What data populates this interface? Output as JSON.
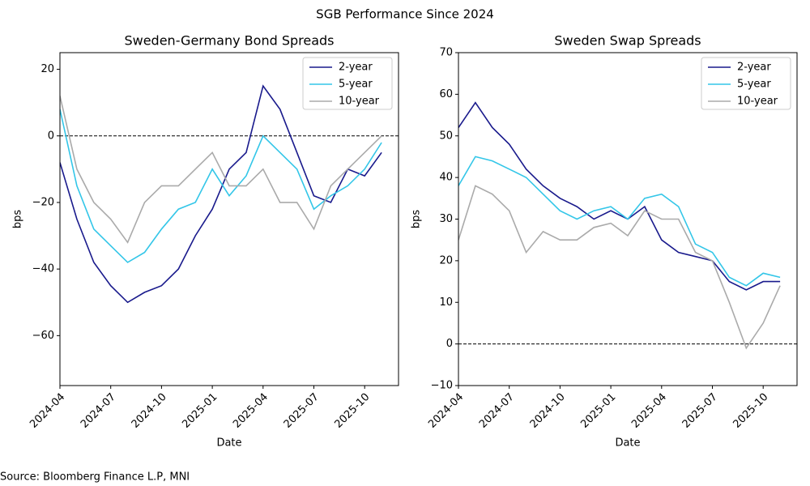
{
  "title": "SGB Performance Since 2024",
  "source": "Source: Bloomberg Finance L.P, MNI",
  "chart_data": [
    {
      "type": "line",
      "title": "Sweden-Germany Bond Spreads",
      "xlabel": "Date",
      "ylabel": "bps",
      "x": [
        "2024-04",
        "2024-05",
        "2024-06",
        "2024-07",
        "2024-08",
        "2024-09",
        "2024-10",
        "2024-11",
        "2024-12",
        "2025-01",
        "2025-02",
        "2025-03",
        "2025-04",
        "2025-05",
        "2025-06",
        "2025-07",
        "2025-08",
        "2025-09",
        "2025-10",
        "2025-11"
      ],
      "xlim": [
        "2024-04",
        "2025-12"
      ],
      "xticks": [
        "2024-04",
        "2024-07",
        "2024-10",
        "2025-01",
        "2025-04",
        "2025-07",
        "2025-10"
      ],
      "ylim": [
        -75,
        25
      ],
      "yticks": [
        {
          "value": -60,
          "label": "−60"
        },
        {
          "value": -40,
          "label": "−40"
        },
        {
          "value": -20,
          "label": "−20"
        },
        0,
        20
      ],
      "zero_line": true,
      "legend": "upper right",
      "series": [
        {
          "name": "2-year",
          "color": "#191a8c",
          "values": [
            -8,
            -25,
            -38,
            -45,
            -50,
            -47,
            -45,
            -40,
            -30,
            -22,
            -10,
            -5,
            15,
            8,
            -5,
            -18,
            -20,
            -10,
            -12,
            -5
          ]
        },
        {
          "name": "5-year",
          "color": "#33c6e8",
          "values": [
            8,
            -15,
            -28,
            -33,
            -38,
            -35,
            -28,
            -22,
            -20,
            -10,
            -18,
            -12,
            0,
            -5,
            -10,
            -22,
            -18,
            -15,
            -10,
            -2
          ]
        },
        {
          "name": "10-year",
          "color": "#aaaaaa",
          "values": [
            12,
            -10,
            -20,
            -25,
            -32,
            -20,
            -15,
            -15,
            -10,
            -5,
            -15,
            -15,
            -10,
            -20,
            -20,
            -28,
            -15,
            -10,
            -5,
            0
          ]
        }
      ]
    },
    {
      "type": "line",
      "title": "Sweden Swap Spreads",
      "xlabel": "Date",
      "ylabel": "bps",
      "x": [
        "2024-04",
        "2024-05",
        "2024-06",
        "2024-07",
        "2024-08",
        "2024-09",
        "2024-10",
        "2024-11",
        "2024-12",
        "2025-01",
        "2025-02",
        "2025-03",
        "2025-04",
        "2025-05",
        "2025-06",
        "2025-07",
        "2025-08",
        "2025-09",
        "2025-10",
        "2025-11"
      ],
      "xlim": [
        "2024-04",
        "2025-12"
      ],
      "xticks": [
        "2024-04",
        "2024-07",
        "2024-10",
        "2025-01",
        "2025-04",
        "2025-07",
        "2025-10"
      ],
      "ylim": [
        -10,
        70
      ],
      "yticks": [
        {
          "value": -10,
          "label": "−10"
        },
        0,
        10,
        20,
        30,
        40,
        50,
        60,
        70
      ],
      "zero_line": true,
      "legend": "upper right",
      "series": [
        {
          "name": "2-year",
          "color": "#191a8c",
          "values": [
            52,
            58,
            52,
            48,
            42,
            38,
            35,
            33,
            30,
            32,
            30,
            33,
            25,
            22,
            21,
            20,
            15,
            13,
            15,
            15
          ]
        },
        {
          "name": "5-year",
          "color": "#33c6e8",
          "values": [
            38,
            45,
            44,
            42,
            40,
            36,
            32,
            30,
            32,
            33,
            30,
            35,
            36,
            33,
            24,
            22,
            16,
            14,
            17,
            16
          ]
        },
        {
          "name": "10-year",
          "color": "#aaaaaa",
          "values": [
            25,
            38,
            36,
            32,
            22,
            27,
            25,
            25,
            28,
            29,
            26,
            32,
            30,
            30,
            22,
            20,
            10,
            -1,
            5,
            14
          ]
        }
      ]
    }
  ]
}
